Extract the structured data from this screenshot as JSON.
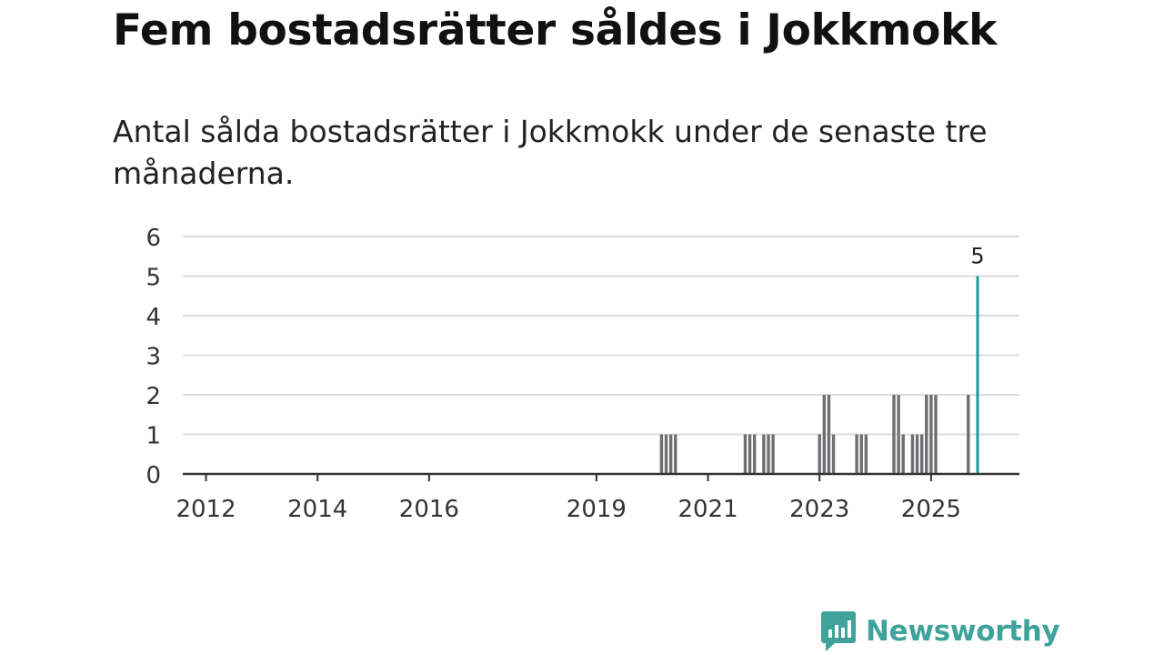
{
  "title": "Fem bostadsrätter såldes i Jokkmokk",
  "subtitle": "Antal sålda bostadsrätter i Jokkmokk under de senaste tre månaderna.",
  "brand": {
    "name": "Newsworthy",
    "icon": "newsworthy-chart-bubble-icon",
    "color": "#3fa39c"
  },
  "colors": {
    "bar": "#6f6f73",
    "highlight": "#1a9e96",
    "grid": "#dddddd",
    "axis": "#333333"
  },
  "chart_data": {
    "type": "bar",
    "title": "",
    "xlabel": "",
    "ylabel": "",
    "ylim": [
      0,
      6
    ],
    "yticks": [
      "0",
      "1",
      "2",
      "3",
      "4",
      "5",
      "6"
    ],
    "xlim": [
      "2011-08",
      "2026-08"
    ],
    "xticks": [
      {
        "label": "2012",
        "date": "2012-01"
      },
      {
        "label": "2014",
        "date": "2014-01"
      },
      {
        "label": "2016",
        "date": "2016-01"
      },
      {
        "label": "2019",
        "date": "2019-01"
      },
      {
        "label": "2021",
        "date": "2021-01"
      },
      {
        "label": "2023",
        "date": "2023-01"
      },
      {
        "label": "2025",
        "date": "2025-01"
      }
    ],
    "grid": true,
    "series": [
      {
        "values": [
          {
            "date": "2020-03",
            "value": 1
          },
          {
            "date": "2020-04",
            "value": 1
          },
          {
            "date": "2020-05",
            "value": 1
          },
          {
            "date": "2020-06",
            "value": 1
          },
          {
            "date": "2021-09",
            "value": 1
          },
          {
            "date": "2021-10",
            "value": 1
          },
          {
            "date": "2021-11",
            "value": 1
          },
          {
            "date": "2022-01",
            "value": 1
          },
          {
            "date": "2022-02",
            "value": 1
          },
          {
            "date": "2022-03",
            "value": 1
          },
          {
            "date": "2023-01",
            "value": 1
          },
          {
            "date": "2023-02",
            "value": 2
          },
          {
            "date": "2023-03",
            "value": 2
          },
          {
            "date": "2023-04",
            "value": 1
          },
          {
            "date": "2023-09",
            "value": 1
          },
          {
            "date": "2023-10",
            "value": 1
          },
          {
            "date": "2023-11",
            "value": 1
          },
          {
            "date": "2024-05",
            "value": 2
          },
          {
            "date": "2024-06",
            "value": 2
          },
          {
            "date": "2024-07",
            "value": 1
          },
          {
            "date": "2024-09",
            "value": 1
          },
          {
            "date": "2024-10",
            "value": 1
          },
          {
            "date": "2024-11",
            "value": 1
          },
          {
            "date": "2024-12",
            "value": 2
          },
          {
            "date": "2025-01",
            "value": 2
          },
          {
            "date": "2025-02",
            "value": 2
          },
          {
            "date": "2025-09",
            "value": 2
          }
        ]
      },
      {
        "highlight": true,
        "values": [
          {
            "date": "2025-11",
            "value": 5
          }
        ]
      }
    ],
    "annotations": [
      {
        "date": "2025-11",
        "value": 5,
        "text": "5"
      }
    ]
  }
}
